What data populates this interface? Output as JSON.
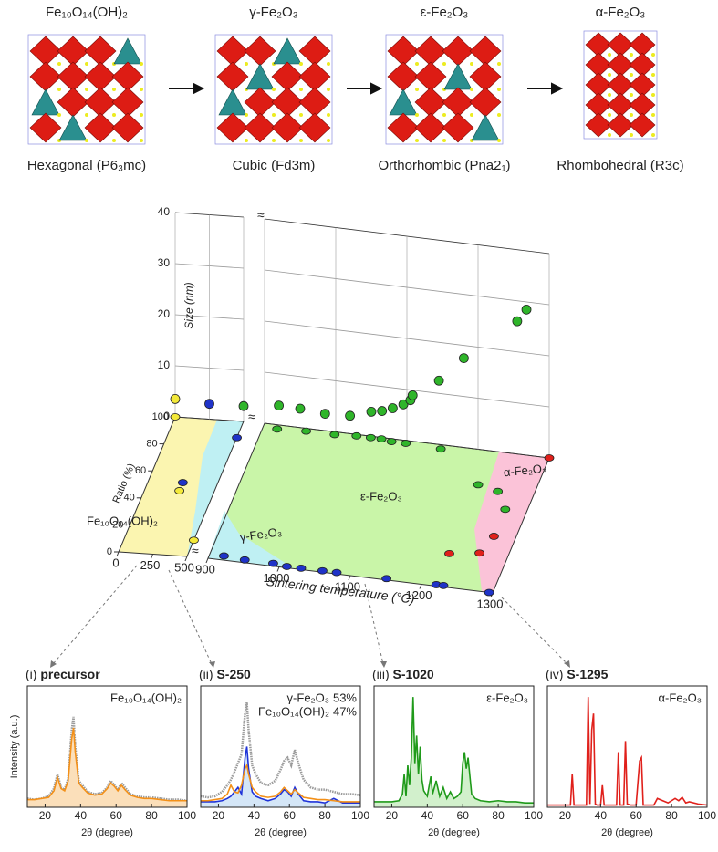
{
  "structures": [
    {
      "formula": "Fe₁₀O₁₄(OH)₂",
      "system": "Hexagonal (P6₃mc)"
    },
    {
      "formula": "γ-Fe₂O₃",
      "system": "Cubic (Fd3̄m)"
    },
    {
      "formula": "ε-Fe₂O₃",
      "system": "Orthorhombic (Pna2₁)"
    },
    {
      "formula": "α-Fe₂O₃",
      "system": "Rhombohedral (R3̄c)"
    }
  ],
  "chart_data": [
    {
      "type": "scatter3d",
      "xlabel": "Sintering temperature (°C)",
      "ylabel": "Ratio (%)",
      "zlabel": "Size (nm)",
      "xlim": [
        0,
        1300
      ],
      "axis_break": [
        500,
        900
      ],
      "xticks": [
        0,
        250,
        500,
        900,
        1000,
        1100,
        1200,
        1300
      ],
      "ylim": [
        0,
        100
      ],
      "yticks": [
        0,
        20,
        40,
        60,
        80,
        100
      ],
      "zlim": [
        0,
        40
      ],
      "zticks": [
        0,
        10,
        20,
        30,
        40
      ],
      "size_points": {
        "x": [
          0,
          250,
          500,
          920,
          950,
          985,
          1020,
          1050,
          1065,
          1080,
          1095,
          1105,
          1108,
          1145,
          1180,
          1255,
          1268
        ],
        "values": [
          3.5,
          3,
          3,
          3.8,
          3.7,
          3.3,
          3.5,
          4.8,
          5.2,
          6,
          7,
          8,
          9,
          12.5,
          17.5,
          26,
          28.5
        ],
        "colors": [
          "#f3e93a",
          "#1f33c8",
          "#2fb52a",
          "#2fb52a",
          "#2fb52a",
          "#2fb52a",
          "#2fb52a",
          "#2fb52a",
          "#2fb52a",
          "#2fb52a",
          "#2fb52a",
          "#2fb52a",
          "#2fb52a",
          "#2fb52a",
          "#2fb52a",
          "#2fb52a",
          "#2fb52a"
        ]
      },
      "series": [
        {
          "name": "Fe₁₀O₁₄(OH)₂",
          "color": "#f3e93a",
          "label_color": "#f39018",
          "x": [
            0,
            250,
            500
          ],
          "values": [
            100,
            47,
            12
          ]
        },
        {
          "name": "γ-Fe₂O₃",
          "color": "#1f33c8",
          "label_color": "#1f33c8",
          "x": [
            250,
            500,
            920,
            950,
            990,
            1010,
            1030,
            1060,
            1080,
            1150,
            1220,
            1230,
            1295
          ],
          "values": [
            53,
            88,
            3,
            2,
            2,
            1,
            1,
            1,
            1,
            1,
            1,
            1,
            0
          ]
        },
        {
          "name": "ε-Fe₂O₃",
          "color": "#2fb52a",
          "label_color": "#2a9a25",
          "x": [
            920,
            960,
            1000,
            1030,
            1050,
            1065,
            1080,
            1100,
            1150,
            1220,
            1250,
            1270
          ],
          "values": [
            97,
            98,
            98,
            99,
            99,
            99,
            98,
            98,
            97,
            75,
            72,
            60
          ]
        },
        {
          "name": "α-Fe₂O₃",
          "color": "#e0201b",
          "label_color": "#d81c1c",
          "x": [
            1220,
            1260,
            1270,
            1300
          ],
          "values": [
            24,
            27,
            40,
            100
          ]
        }
      ]
    },
    {
      "type": "line",
      "panel": "(i)",
      "title": "precursor",
      "xlabel": "2θ (degree)",
      "ylabel": "Intensity (a.u.)",
      "xlim": [
        10,
        100
      ],
      "xticks": [
        20,
        40,
        60,
        80,
        100
      ],
      "ylim": [
        0,
        110
      ],
      "x": [
        10,
        14,
        18,
        22,
        25,
        27,
        29,
        31,
        33,
        35,
        36,
        37,
        39,
        41,
        44,
        48,
        52,
        55,
        57,
        59,
        61,
        63,
        65,
        68,
        72,
        76,
        80,
        85,
        90,
        95,
        100
      ],
      "series": [
        {
          "color": "#9a9a9a",
          "values": [
            8,
            7,
            8,
            10,
            17,
            30,
            18,
            16,
            26,
            70,
            82,
            55,
            24,
            20,
            14,
            12,
            13,
            18,
            24,
            20,
            16,
            22,
            18,
            12,
            10,
            9,
            9,
            8,
            7,
            7,
            6
          ]
        },
        {
          "name": "Fe₁₀O₁₄(OH)₂",
          "color": "#f39018",
          "fill": "#fbdcb3",
          "values": [
            7,
            7,
            8,
            9,
            15,
            27,
            17,
            15,
            24,
            62,
            72,
            50,
            22,
            18,
            13,
            11,
            12,
            17,
            22,
            19,
            15,
            20,
            16,
            11,
            9,
            8,
            8,
            7,
            6,
            6,
            6
          ]
        }
      ]
    },
    {
      "type": "line",
      "panel": "(ii)",
      "title": "S-250",
      "xlabel": "2θ (degree)",
      "xlim": [
        10,
        100
      ],
      "xticks": [
        20,
        40,
        60,
        80,
        100
      ],
      "ylim": [
        0,
        110
      ],
      "x": [
        10,
        14,
        18,
        22,
        25,
        27,
        29,
        31,
        33,
        35,
        36,
        37,
        39,
        41,
        44,
        48,
        52,
        55,
        57,
        59,
        61,
        63,
        65,
        68,
        72,
        76,
        80,
        85,
        90,
        95,
        100
      ],
      "series": [
        {
          "color": "#9a9a9a",
          "values": [
            10,
            9,
            10,
            14,
            20,
            25,
            32,
            40,
            48,
            85,
            95,
            70,
            38,
            30,
            22,
            20,
            24,
            34,
            42,
            45,
            38,
            52,
            40,
            25,
            18,
            16,
            16,
            14,
            12,
            12,
            11
          ]
        },
        {
          "name": "γ-Fe₂O₃",
          "color": "#1f33d8",
          "fill": "#cfe3f6",
          "fraction": 53,
          "fraction_label": "53%",
          "values": [
            5,
            5,
            5,
            6,
            8,
            10,
            14,
            18,
            12,
            45,
            55,
            35,
            14,
            10,
            8,
            6,
            8,
            12,
            16,
            14,
            10,
            18,
            12,
            6,
            5,
            5,
            4,
            8,
            4,
            4,
            4
          ]
        },
        {
          "name": "Fe₁₀O₁₄(OH)₂",
          "color": "#f39018",
          "fraction": 47,
          "fraction_label": "47%",
          "values": [
            6,
            6,
            7,
            8,
            12,
            20,
            14,
            13,
            20,
            35,
            38,
            30,
            18,
            14,
            10,
            9,
            10,
            14,
            18,
            15,
            12,
            16,
            13,
            9,
            8,
            7,
            7,
            6,
            5,
            5,
            5
          ]
        }
      ]
    },
    {
      "type": "line",
      "panel": "(iii)",
      "title": "S-1020",
      "xlabel": "2θ (degree)",
      "xlim": [
        10,
        100
      ],
      "xticks": [
        20,
        40,
        60,
        80,
        100
      ],
      "ylim": [
        0,
        110
      ],
      "x": [
        10,
        15,
        20,
        24,
        26,
        27,
        28,
        29,
        30,
        31,
        32,
        33,
        34,
        35,
        36,
        37,
        38,
        40,
        42,
        43,
        45,
        47,
        49,
        51,
        53,
        55,
        57,
        59,
        60,
        61,
        62,
        63,
        65,
        67,
        70,
        75,
        80,
        85,
        90,
        95,
        100
      ],
      "series": [
        {
          "name": "ε-Fe₂O₃",
          "color": "#1f9a1a",
          "fill": "#cdeec6",
          "values": [
            5,
            5,
            5,
            6,
            12,
            30,
            10,
            38,
            20,
            45,
            100,
            40,
            65,
            30,
            55,
            25,
            15,
            10,
            28,
            12,
            24,
            10,
            18,
            8,
            14,
            8,
            10,
            14,
            40,
            50,
            35,
            45,
            12,
            8,
            6,
            5,
            6,
            5,
            5,
            4,
            4
          ]
        }
      ]
    },
    {
      "type": "line",
      "panel": "(iv)",
      "title": "S-1295",
      "xlabel": "2θ (degree)",
      "xlim": [
        10,
        100
      ],
      "xticks": [
        20,
        40,
        60,
        80,
        100
      ],
      "ylim": [
        0,
        110
      ],
      "x": [
        10,
        20,
        23,
        24,
        25,
        30,
        32,
        33,
        34,
        35,
        36,
        37,
        38,
        40,
        41,
        42,
        45,
        49,
        50,
        51,
        53,
        54,
        55,
        57,
        60,
        62,
        63,
        64,
        66,
        70,
        72,
        75,
        78,
        80,
        82,
        84,
        86,
        88,
        90,
        95,
        100
      ],
      "series": [
        {
          "name": "α-Fe₂O₃",
          "color": "#e0201b",
          "values": [
            2,
            2,
            2,
            30,
            2,
            2,
            2,
            100,
            3,
            70,
            85,
            3,
            2,
            2,
            20,
            2,
            2,
            2,
            50,
            2,
            2,
            60,
            3,
            2,
            2,
            42,
            45,
            2,
            2,
            2,
            8,
            6,
            4,
            6,
            8,
            6,
            9,
            4,
            5,
            3,
            2
          ]
        }
      ]
    }
  ]
}
